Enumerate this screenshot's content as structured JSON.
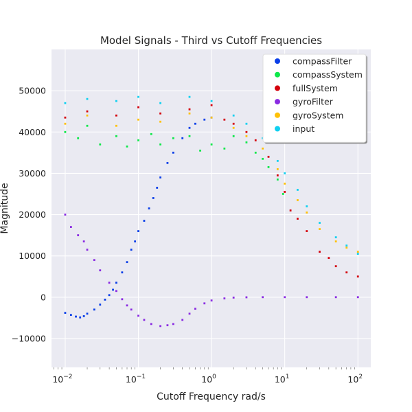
{
  "chart_data": {
    "type": "scatter",
    "title": "Model Signals - Third vs Cutoff Frequencies",
    "xlabel": "Cutoff Frequency rad/s",
    "ylabel": "Magnitude",
    "x_scale": "log",
    "xlim": [
      0.0065,
      150
    ],
    "ylim": [
      -17000,
      60000
    ],
    "x_ticks": [
      {
        "value": 0.01,
        "base": "10",
        "exp": "−2"
      },
      {
        "value": 0.1,
        "base": "10",
        "exp": "−1"
      },
      {
        "value": 1,
        "base": "10",
        "exp": "0"
      },
      {
        "value": 10,
        "base": "10",
        "exp": "1"
      },
      {
        "value": 100,
        "base": "10",
        "exp": "2"
      }
    ],
    "y_ticks": [
      {
        "value": -10000,
        "label": "−10000"
      },
      {
        "value": 0,
        "label": "0"
      },
      {
        "value": 10000,
        "label": "10000"
      },
      {
        "value": 20000,
        "label": "20000"
      },
      {
        "value": 30000,
        "label": "30000"
      },
      {
        "value": 40000,
        "label": "40000"
      },
      {
        "value": 50000,
        "label": "50000"
      }
    ],
    "grid": true,
    "legend_position": "top-right",
    "series": [
      {
        "name": "compassFilter",
        "color": "#0b3fe8",
        "points": [
          [
            0.01,
            -3800
          ],
          [
            0.012,
            -4300
          ],
          [
            0.014,
            -4700
          ],
          [
            0.016,
            -4900
          ],
          [
            0.018,
            -4600
          ],
          [
            0.02,
            -4000
          ],
          [
            0.025,
            -3000
          ],
          [
            0.03,
            -1800
          ],
          [
            0.035,
            -600
          ],
          [
            0.04,
            500
          ],
          [
            0.045,
            1800
          ],
          [
            0.05,
            3500
          ],
          [
            0.06,
            6000
          ],
          [
            0.07,
            8500
          ],
          [
            0.08,
            11500
          ],
          [
            0.09,
            13500
          ],
          [
            0.1,
            16000
          ],
          [
            0.12,
            18500
          ],
          [
            0.14,
            21500
          ],
          [
            0.16,
            24000
          ],
          [
            0.18,
            26500
          ],
          [
            0.2,
            29000
          ],
          [
            0.25,
            32500
          ],
          [
            0.3,
            35000
          ],
          [
            0.4,
            38500
          ],
          [
            0.5,
            41000
          ],
          [
            0.6,
            42000
          ],
          [
            0.8,
            43000
          ],
          [
            1.0,
            43500
          ]
        ]
      },
      {
        "name": "compassSystem",
        "color": "#0ee84a",
        "points": [
          [
            0.01,
            40000
          ],
          [
            0.015,
            38500
          ],
          [
            0.02,
            41500
          ],
          [
            0.03,
            37000
          ],
          [
            0.05,
            39000
          ],
          [
            0.07,
            36500
          ],
          [
            0.1,
            38000
          ],
          [
            0.15,
            39500
          ],
          [
            0.2,
            37000
          ],
          [
            0.3,
            38500
          ],
          [
            0.5,
            39000
          ],
          [
            0.7,
            35500
          ],
          [
            1.0,
            37000
          ],
          [
            1.5,
            36000
          ],
          [
            2.0,
            39000
          ],
          [
            3.0,
            37500
          ],
          [
            4.0,
            35000
          ],
          [
            5.0,
            33500
          ],
          [
            6.0,
            31500
          ],
          [
            8.0,
            28500
          ],
          [
            9.5,
            25000
          ]
        ]
      },
      {
        "name": "fullSystem",
        "color": "#d4000c",
        "points": [
          [
            0.01,
            43500
          ],
          [
            0.02,
            45000
          ],
          [
            0.05,
            44000
          ],
          [
            0.1,
            46000
          ],
          [
            0.2,
            44500
          ],
          [
            0.5,
            45500
          ],
          [
            1.0,
            46500
          ],
          [
            1.5,
            43000
          ],
          [
            2.0,
            42000
          ],
          [
            3.0,
            40000
          ],
          [
            4.0,
            38000
          ],
          [
            6.0,
            34000
          ],
          [
            8.0,
            29500
          ],
          [
            10.0,
            25500
          ],
          [
            12.0,
            21000
          ],
          [
            15.0,
            19000
          ],
          [
            20.0,
            16000
          ],
          [
            30.0,
            11000
          ],
          [
            40.0,
            9500
          ],
          [
            50.0,
            7500
          ],
          [
            70.0,
            6000
          ],
          [
            100.0,
            5000
          ]
        ]
      },
      {
        "name": "gyroFilter",
        "color": "#8a2be2",
        "points": [
          [
            0.01,
            20000
          ],
          [
            0.012,
            17000
          ],
          [
            0.015,
            15000
          ],
          [
            0.018,
            13500
          ],
          [
            0.02,
            11500
          ],
          [
            0.025,
            9000
          ],
          [
            0.03,
            6500
          ],
          [
            0.04,
            3500
          ],
          [
            0.05,
            1500
          ],
          [
            0.06,
            -500
          ],
          [
            0.07,
            -2000
          ],
          [
            0.08,
            -3000
          ],
          [
            0.1,
            -4500
          ],
          [
            0.12,
            -5500
          ],
          [
            0.15,
            -6500
          ],
          [
            0.2,
            -7000
          ],
          [
            0.25,
            -6800
          ],
          [
            0.3,
            -6500
          ],
          [
            0.4,
            -5500
          ],
          [
            0.5,
            -4000
          ],
          [
            0.6,
            -2800
          ],
          [
            0.8,
            -1500
          ],
          [
            1.0,
            -800
          ],
          [
            1.5,
            -300
          ],
          [
            2.0,
            -100
          ],
          [
            3.0,
            -30
          ],
          [
            5.0,
            0
          ],
          [
            10.0,
            0
          ],
          [
            20.0,
            0
          ],
          [
            50.0,
            0
          ],
          [
            100.0,
            0
          ]
        ]
      },
      {
        "name": "gyroSystem",
        "color": "#ffc107",
        "points": [
          [
            0.01,
            42000
          ],
          [
            0.02,
            44000
          ],
          [
            0.05,
            41500
          ],
          [
            0.1,
            43000
          ],
          [
            0.2,
            42500
          ],
          [
            0.5,
            44500
          ],
          [
            1.0,
            43500
          ],
          [
            2.0,
            41000
          ],
          [
            3.0,
            39000
          ],
          [
            5.0,
            36000
          ],
          [
            8.0,
            31000
          ],
          [
            10.0,
            27500
          ],
          [
            15.0,
            23500
          ],
          [
            20.0,
            20500
          ],
          [
            30.0,
            16500
          ],
          [
            50.0,
            13500
          ],
          [
            70.0,
            12000
          ],
          [
            100.0,
            11000
          ]
        ]
      },
      {
        "name": "input",
        "color": "#10d0f0",
        "points": [
          [
            0.01,
            47000
          ],
          [
            0.02,
            48000
          ],
          [
            0.05,
            47500
          ],
          [
            0.1,
            48500
          ],
          [
            0.2,
            47000
          ],
          [
            0.5,
            48500
          ],
          [
            1.0,
            47500
          ],
          [
            2.0,
            44000
          ],
          [
            3.0,
            42000
          ],
          [
            5.0,
            38500
          ],
          [
            8.0,
            33000
          ],
          [
            10.0,
            30000
          ],
          [
            15.0,
            26000
          ],
          [
            20.0,
            22000
          ],
          [
            30.0,
            18000
          ],
          [
            50.0,
            14500
          ],
          [
            70.0,
            12500
          ],
          [
            100.0,
            10500
          ]
        ]
      }
    ]
  }
}
